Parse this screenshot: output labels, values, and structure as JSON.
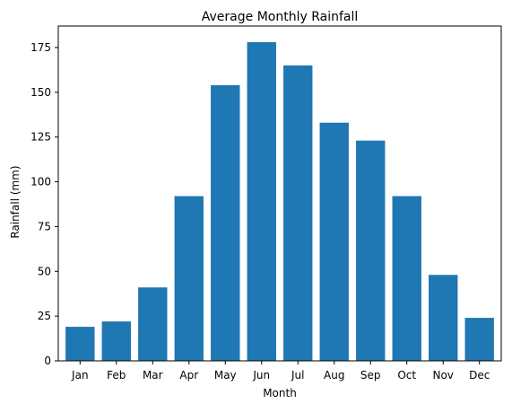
{
  "chart_data": {
    "type": "bar",
    "title": "Average Monthly Rainfall",
    "xlabel": "Month",
    "ylabel": "Rainfall (mm)",
    "categories": [
      "Jan",
      "Feb",
      "Mar",
      "Apr",
      "May",
      "Jun",
      "Jul",
      "Aug",
      "Sep",
      "Oct",
      "Nov",
      "Dec"
    ],
    "values": [
      19,
      22,
      41,
      92,
      154,
      178,
      165,
      133,
      123,
      92,
      48,
      24
    ],
    "ylim": [
      0,
      187
    ],
    "yticks": [
      0,
      25,
      50,
      75,
      100,
      125,
      150,
      175
    ],
    "bar_color": "#1f77b4",
    "grid": false,
    "legend": "none"
  }
}
